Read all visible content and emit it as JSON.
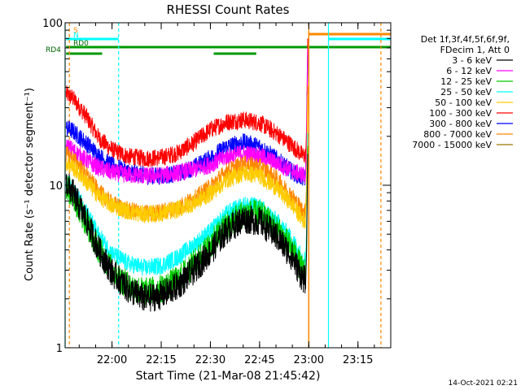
{
  "chart_data": {
    "type": "line",
    "title": "RHESSI Count Rates",
    "xlabel": "Start Time (21-Mar-08 21:45:42)",
    "ylabel": "Count Rate (s⁻¹ detector segment⁻¹)",
    "y_scale": "log",
    "ylim": [
      1,
      100
    ],
    "y_ticks": [
      {
        "value": 1,
        "label": "1"
      },
      {
        "value": 10,
        "label": "10"
      },
      {
        "value": 100,
        "label": "100"
      }
    ],
    "xlim": [
      "21:45:42",
      "23:25:00"
    ],
    "x_ticks": [
      "22:00",
      "22:15",
      "22:30",
      "22:45",
      "23:00",
      "23:15"
    ],
    "legend_header": [
      "Det 1f,3f,4f,5f,6f,9f,",
      "FDecim 1, Att 0"
    ],
    "legend_position": "right",
    "series": [
      {
        "name": "3 - 6 keV",
        "color": "#000000",
        "points": [
          [
            "21:46",
            10.3
          ],
          [
            "21:48",
            9.0
          ],
          [
            "21:52",
            6.2
          ],
          [
            "21:56",
            4.0
          ],
          [
            "22:00",
            2.9
          ],
          [
            "22:05",
            2.3
          ],
          [
            "22:10",
            2.0
          ],
          [
            "22:15",
            2.1
          ],
          [
            "22:20",
            2.4
          ],
          [
            "22:25",
            3.0
          ],
          [
            "22:30",
            3.9
          ],
          [
            "22:35",
            5.3
          ],
          [
            "22:40",
            6.2
          ],
          [
            "22:45",
            6.0
          ],
          [
            "22:50",
            4.9
          ],
          [
            "22:55",
            3.6
          ],
          [
            "22:58",
            2.7
          ],
          [
            "22:59",
            2.6
          ]
        ]
      },
      {
        "name": "6 - 12 keV",
        "color": "#ff00ff",
        "points": [
          [
            "21:46",
            17.5
          ],
          [
            "21:48",
            16.5
          ],
          [
            "21:52",
            14.3
          ],
          [
            "21:56",
            12.8
          ],
          [
            "22:00",
            12.0
          ],
          [
            "22:05",
            11.6
          ],
          [
            "22:10",
            11.4
          ],
          [
            "22:15",
            11.5
          ],
          [
            "22:20",
            11.9
          ],
          [
            "22:25",
            12.5
          ],
          [
            "22:30",
            13.4
          ],
          [
            "22:35",
            15.0
          ],
          [
            "22:40",
            15.7
          ],
          [
            "22:45",
            15.2
          ],
          [
            "22:50",
            13.8
          ],
          [
            "22:55",
            12.2
          ],
          [
            "22:58",
            11.6
          ],
          [
            "22:59",
            11.5
          ]
        ]
      },
      {
        "name": "12 - 25 keV",
        "color": "#00cc00",
        "points": [
          [
            "21:46",
            9.8
          ],
          [
            "21:48",
            8.7
          ],
          [
            "21:52",
            6.0
          ],
          [
            "21:56",
            4.0
          ],
          [
            "22:00",
            3.0
          ],
          [
            "22:05",
            2.4
          ],
          [
            "22:10",
            2.2
          ],
          [
            "22:15",
            2.3
          ],
          [
            "22:20",
            2.6
          ],
          [
            "22:25",
            3.3
          ],
          [
            "22:30",
            4.3
          ],
          [
            "22:35",
            5.7
          ],
          [
            "22:40",
            6.7
          ],
          [
            "22:45",
            6.6
          ],
          [
            "22:50",
            5.4
          ],
          [
            "22:55",
            4.0
          ],
          [
            "22:58",
            3.0
          ],
          [
            "22:59",
            2.9
          ]
        ]
      },
      {
        "name": "25 - 50 keV",
        "color": "#00ffff",
        "points": [
          [
            "21:46",
            10.5
          ],
          [
            "21:48",
            9.6
          ],
          [
            "21:52",
            6.9
          ],
          [
            "21:56",
            4.9
          ],
          [
            "22:00",
            3.8
          ],
          [
            "22:05",
            3.3
          ],
          [
            "22:10",
            3.1
          ],
          [
            "22:15",
            3.2
          ],
          [
            "22:20",
            3.6
          ],
          [
            "22:25",
            4.3
          ],
          [
            "22:30",
            5.2
          ],
          [
            "22:35",
            6.7
          ],
          [
            "22:40",
            7.6
          ],
          [
            "22:45",
            7.4
          ],
          [
            "22:50",
            6.1
          ],
          [
            "22:55",
            4.6
          ],
          [
            "22:58",
            3.6
          ],
          [
            "22:59",
            3.5
          ]
        ]
      },
      {
        "name": "50 - 100 keV",
        "color": "#ffcc00",
        "points": [
          [
            "21:46",
            13.8
          ],
          [
            "21:48",
            13.0
          ],
          [
            "21:52",
            10.6
          ],
          [
            "21:56",
            8.6
          ],
          [
            "22:00",
            7.5
          ],
          [
            "22:05",
            6.9
          ],
          [
            "22:10",
            6.6
          ],
          [
            "22:15",
            6.7
          ],
          [
            "22:20",
            7.1
          ],
          [
            "22:25",
            7.8
          ],
          [
            "22:30",
            8.9
          ],
          [
            "22:35",
            10.8
          ],
          [
            "22:40",
            11.9
          ],
          [
            "22:45",
            11.5
          ],
          [
            "22:50",
            9.7
          ],
          [
            "22:55",
            7.6
          ],
          [
            "22:58",
            6.2
          ],
          [
            "22:59",
            6.0
          ]
        ]
      },
      {
        "name": "100 - 300 keV",
        "color": "#ff0000",
        "points": [
          [
            "21:46",
            36.5
          ],
          [
            "21:48",
            34.5
          ],
          [
            "21:52",
            26.8
          ],
          [
            "21:56",
            19.5
          ],
          [
            "22:00",
            16.5
          ],
          [
            "22:05",
            15.0
          ],
          [
            "22:10",
            14.6
          ],
          [
            "22:15",
            14.8
          ],
          [
            "22:20",
            15.8
          ],
          [
            "22:25",
            18.3
          ],
          [
            "22:30",
            22.0
          ],
          [
            "22:35",
            24.5
          ],
          [
            "22:40",
            25.3
          ],
          [
            "22:45",
            24.2
          ],
          [
            "22:50",
            21.0
          ],
          [
            "22:55",
            17.5
          ],
          [
            "22:58",
            15.4
          ],
          [
            "22:59",
            15.2
          ]
        ]
      },
      {
        "name": "300 - 800 keV",
        "color": "#0000ff",
        "points": [
          [
            "21:46",
            22.5
          ],
          [
            "21:48",
            21.6
          ],
          [
            "21:52",
            18.3
          ],
          [
            "21:56",
            15.2
          ],
          [
            "22:00",
            13.2
          ],
          [
            "22:05",
            12.1
          ],
          [
            "22:10",
            11.5
          ],
          [
            "22:15",
            11.4
          ],
          [
            "22:20",
            11.8
          ],
          [
            "22:25",
            12.9
          ],
          [
            "22:30",
            14.7
          ],
          [
            "22:35",
            17.3
          ],
          [
            "22:40",
            18.4
          ],
          [
            "22:45",
            17.3
          ],
          [
            "22:50",
            14.6
          ],
          [
            "22:55",
            12.1
          ],
          [
            "22:58",
            11.1
          ],
          [
            "22:59",
            11.0
          ]
        ]
      },
      {
        "name": "800 - 7000 keV",
        "color": "#ff8800",
        "points": [
          [
            "21:46",
            15.5
          ],
          [
            "21:48",
            14.6
          ],
          [
            "21:52",
            11.7
          ],
          [
            "21:56",
            9.1
          ],
          [
            "22:00",
            7.7
          ],
          [
            "22:05",
            7.0
          ],
          [
            "22:10",
            6.7
          ],
          [
            "22:15",
            6.8
          ],
          [
            "22:20",
            7.3
          ],
          [
            "22:25",
            8.2
          ],
          [
            "22:30",
            9.8
          ],
          [
            "22:35",
            12.2
          ],
          [
            "22:40",
            13.5
          ],
          [
            "22:45",
            13.0
          ],
          [
            "22:50",
            11.0
          ],
          [
            "22:55",
            8.5
          ],
          [
            "22:58",
            7.0
          ],
          [
            "22:59",
            6.8
          ]
        ]
      },
      {
        "name": "7000 - 15000 keV",
        "color": "#997700",
        "points": []
      }
    ],
    "flag_bars": [
      {
        "label": "S",
        "label_color": "#ff8800",
        "color": "#ff8800",
        "segments": [
          [
            "23:00",
            "23:25"
          ]
        ]
      },
      {
        "label": "N",
        "label_color": "#00ffff",
        "color": "#00ffff",
        "segments": [
          [
            "21:46",
            "22:02"
          ],
          [
            "23:06",
            "23:25"
          ]
        ]
      },
      {
        "label": "RD0",
        "label_color": "#006600",
        "color": "#009900",
        "segments": [
          [
            "21:46",
            "23:25"
          ]
        ]
      },
      {
        "label": "RD4",
        "label_color": "#006600",
        "color": "#009900",
        "segments": [
          [
            "21:46",
            "21:57"
          ],
          [
            "22:31",
            "22:44"
          ]
        ]
      }
    ],
    "vertical_lines": [
      {
        "time": "21:47",
        "color": "#ff8800",
        "style": "dashed"
      },
      {
        "time": "22:02",
        "color": "#00ffff",
        "style": "dashed"
      },
      {
        "time": "23:00",
        "color": "#ff8800",
        "style": "solid"
      },
      {
        "time": "23:06",
        "color": "#00ffff",
        "style": "solid"
      },
      {
        "time": "23:22",
        "color": "#ff8800",
        "style": "dashed"
      },
      {
        "time": "21:45:42",
        "color": "#00ffff",
        "style": "solid"
      }
    ],
    "grid": false
  },
  "footer": {
    "timestamp": "14-Oct-2021 02:21"
  }
}
